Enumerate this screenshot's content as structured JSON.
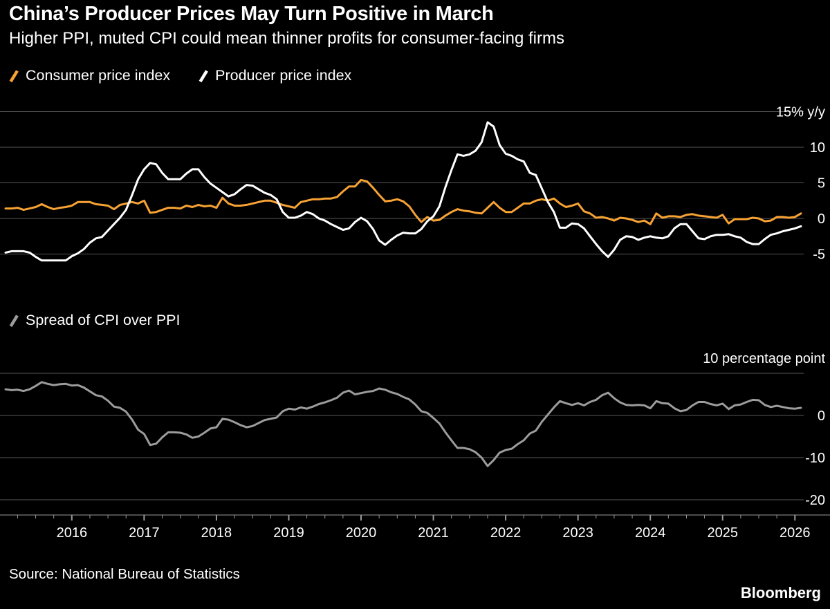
{
  "header": {
    "title": "China’s Producer Prices May Turn Positive in March",
    "subtitle": "Higher PPI, muted CPI could mean thinner profits for consumer-facing firms"
  },
  "footer": {
    "source": "Source: National Bureau of Statistics",
    "brand": "Bloomberg"
  },
  "colors": {
    "background": "#000000",
    "text": "#ffffff",
    "grid": "#585858",
    "axis": "#9a9a9a",
    "cpi": "#f7a234",
    "ppi": "#ffffff",
    "spread": "#9c9c9c"
  },
  "chart_data": [
    {
      "id": "chart-top",
      "type": "line",
      "x": {
        "start": "2015-02",
        "end": "2026-02",
        "frequency": "monthly",
        "tick_labels": [
          "2016",
          "2017",
          "2018",
          "2019",
          "2020",
          "2021",
          "2022",
          "2023",
          "2024",
          "2025",
          "2026"
        ]
      },
      "y": {
        "unit": "% y/y",
        "gridlines": [
          15,
          10,
          5,
          0,
          -5
        ],
        "labels": [
          "15% y/y",
          "10",
          "5",
          "0",
          "-5"
        ],
        "range": [
          -7.5,
          16.5
        ],
        "grid": true,
        "label_side": "right"
      },
      "legend_position": "top-left",
      "series": [
        {
          "name": "Consumer price index",
          "color": "#f7a234",
          "values": [
            1.4,
            1.4,
            1.5,
            1.2,
            1.4,
            1.6,
            2.0,
            1.6,
            1.3,
            1.5,
            1.6,
            1.8,
            2.3,
            2.3,
            2.3,
            2.0,
            1.9,
            1.8,
            1.3,
            1.9,
            2.1,
            2.3,
            2.1,
            2.5,
            0.8,
            0.9,
            1.2,
            1.5,
            1.5,
            1.4,
            1.8,
            1.6,
            1.9,
            1.7,
            1.8,
            1.5,
            2.9,
            2.1,
            1.8,
            1.8,
            1.9,
            2.1,
            2.3,
            2.5,
            2.5,
            2.2,
            1.9,
            1.7,
            1.5,
            2.3,
            2.5,
            2.7,
            2.7,
            2.8,
            2.8,
            3.0,
            3.8,
            4.5,
            4.5,
            5.4,
            5.2,
            4.3,
            3.3,
            2.4,
            2.5,
            2.7,
            2.4,
            1.7,
            0.5,
            -0.5,
            0.2,
            -0.3,
            -0.2,
            0.4,
            0.9,
            1.3,
            1.1,
            1.0,
            0.8,
            0.7,
            1.5,
            2.3,
            1.5,
            0.9,
            0.9,
            1.5,
            2.1,
            2.1,
            2.5,
            2.7,
            2.5,
            2.8,
            2.1,
            1.6,
            1.8,
            2.1,
            1.0,
            0.7,
            0.1,
            0.2,
            0.0,
            -0.3,
            0.1,
            0.0,
            -0.2,
            -0.5,
            -0.3,
            -0.8,
            0.7,
            0.1,
            0.3,
            0.3,
            0.2,
            0.5,
            0.6,
            0.4,
            0.3,
            0.2,
            0.1,
            0.5,
            -0.7,
            -0.1,
            -0.1,
            -0.1,
            0.1,
            0.0,
            -0.4,
            -0.3,
            0.2,
            0.2,
            0.1,
            0.2,
            0.7
          ]
        },
        {
          "name": "Producer price index",
          "color": "#ffffff",
          "values": [
            -4.8,
            -4.6,
            -4.6,
            -4.6,
            -4.8,
            -5.4,
            -5.9,
            -5.9,
            -5.9,
            -5.9,
            -5.9,
            -5.3,
            -4.9,
            -4.3,
            -3.4,
            -2.8,
            -2.6,
            -1.7,
            -0.8,
            0.1,
            1.2,
            3.3,
            5.5,
            6.9,
            7.8,
            7.6,
            6.4,
            5.5,
            5.5,
            5.5,
            6.3,
            6.9,
            6.9,
            5.8,
            4.9,
            4.3,
            3.7,
            3.1,
            3.4,
            4.1,
            4.7,
            4.6,
            4.1,
            3.6,
            3.3,
            2.7,
            0.9,
            0.1,
            0.1,
            0.4,
            0.9,
            0.6,
            0.0,
            -0.3,
            -0.8,
            -1.2,
            -1.6,
            -1.4,
            -0.5,
            0.1,
            -0.4,
            -1.5,
            -3.1,
            -3.7,
            -3.0,
            -2.4,
            -2.0,
            -2.1,
            -2.1,
            -1.5,
            -0.4,
            0.3,
            1.7,
            4.4,
            6.8,
            9.0,
            8.8,
            9.0,
            9.5,
            10.7,
            13.5,
            12.9,
            10.3,
            9.1,
            8.8,
            8.3,
            8.0,
            6.4,
            6.1,
            4.2,
            2.3,
            0.9,
            -1.3,
            -1.3,
            -0.7,
            -0.8,
            -1.4,
            -2.5,
            -3.6,
            -4.6,
            -5.4,
            -4.4,
            -3.0,
            -2.5,
            -2.6,
            -3.0,
            -2.7,
            -2.5,
            -2.7,
            -2.8,
            -2.5,
            -1.4,
            -0.8,
            -0.8,
            -1.8,
            -2.8,
            -2.9,
            -2.5,
            -2.3,
            -2.3,
            -2.2,
            -2.5,
            -2.7,
            -3.3,
            -3.6,
            -3.6,
            -2.9,
            -2.3,
            -2.1,
            -1.8,
            -1.6,
            -1.4,
            -1.1
          ]
        }
      ]
    },
    {
      "id": "chart-bottom",
      "type": "line",
      "x": {
        "start": "2015-02",
        "end": "2026-02",
        "frequency": "monthly",
        "tick_labels": [
          "2016",
          "2017",
          "2018",
          "2019",
          "2020",
          "2021",
          "2022",
          "2023",
          "2024",
          "2025",
          "2026"
        ]
      },
      "y": {
        "unit": "percentage point",
        "gridlines": [
          10,
          0,
          -10,
          -20
        ],
        "labels": [
          "10 percentage point",
          "0",
          "-10",
          "-20"
        ],
        "label_above": 10,
        "range": [
          -25,
          13
        ],
        "grid": true,
        "label_side": "right"
      },
      "legend_position": "top-left",
      "series": [
        {
          "name": "Spread of CPI over PPI",
          "color": "#9c9c9c",
          "values": [
            6.2,
            6.0,
            6.1,
            5.8,
            6.2,
            7.0,
            7.9,
            7.5,
            7.2,
            7.4,
            7.5,
            7.1,
            7.2,
            6.6,
            5.7,
            4.8,
            4.5,
            3.5,
            2.1,
            1.8,
            0.9,
            -1.0,
            -3.4,
            -4.4,
            -7.0,
            -6.7,
            -5.2,
            -4.0,
            -4.0,
            -4.1,
            -4.5,
            -5.3,
            -5.0,
            -4.1,
            -3.1,
            -2.8,
            -0.8,
            -1.0,
            -1.6,
            -2.3,
            -2.8,
            -2.5,
            -1.8,
            -1.1,
            -0.8,
            -0.5,
            1.0,
            1.6,
            1.4,
            1.9,
            1.6,
            2.1,
            2.7,
            3.1,
            3.6,
            4.2,
            5.4,
            5.9,
            5.0,
            5.3,
            5.6,
            5.8,
            6.4,
            6.1,
            5.5,
            5.1,
            4.4,
            3.8,
            2.6,
            1.0,
            0.6,
            -0.6,
            -1.9,
            -4.0,
            -5.9,
            -7.7,
            -7.7,
            -8.0,
            -8.7,
            -10.0,
            -12.0,
            -10.6,
            -8.8,
            -8.2,
            -7.9,
            -6.8,
            -5.9,
            -4.3,
            -3.6,
            -1.5,
            0.2,
            1.9,
            3.4,
            2.9,
            2.5,
            2.9,
            2.4,
            3.2,
            3.7,
            4.8,
            5.4,
            4.1,
            3.1,
            2.5,
            2.4,
            2.5,
            2.4,
            1.7,
            3.4,
            2.9,
            2.8,
            1.7,
            1.0,
            1.3,
            2.4,
            3.2,
            3.2,
            2.7,
            2.4,
            2.8,
            1.5,
            2.4,
            2.6,
            3.2,
            3.7,
            3.6,
            2.5,
            2.0,
            2.3,
            2.0,
            1.7,
            1.6,
            1.8
          ]
        }
      ]
    }
  ]
}
